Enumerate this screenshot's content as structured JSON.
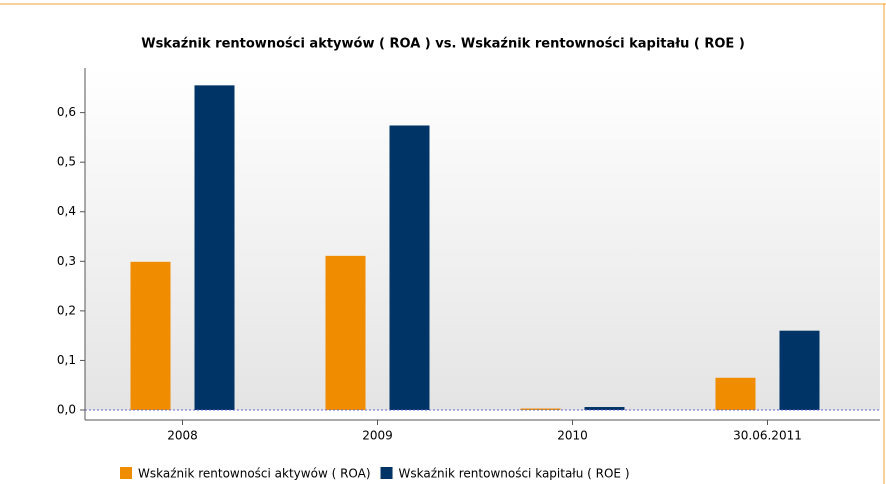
{
  "chart_data": {
    "type": "bar",
    "title": "Wskaźnik rentowności aktywów ( ROA ) vs. Wskaźnik rentowności kapitału ( ROE )",
    "categories": [
      "2008",
      "2009",
      "2010",
      "30.06.2011"
    ],
    "series": [
      {
        "name": "Wskaźnik rentowności aktywów ( ROA)",
        "color": "#f08c00",
        "values": [
          0.299,
          0.311,
          0.003,
          0.065
        ]
      },
      {
        "name": "Wskaźnik rentowności kapitału ( ROE )",
        "color": "#003366",
        "values": [
          0.655,
          0.574,
          0.006,
          0.16
        ]
      }
    ],
    "ylim": [
      0,
      0.69
    ],
    "yticks": [
      {
        "value": 0,
        "label": "0,0"
      },
      {
        "value": 0.1,
        "label": "0,1"
      },
      {
        "value": 0.2,
        "label": "0,2"
      },
      {
        "value": 0.3,
        "label": "0,3"
      },
      {
        "value": 0.4,
        "label": "0,4"
      },
      {
        "value": 0.5,
        "label": "0,5"
      },
      {
        "value": 0.6,
        "label": "0,6"
      }
    ],
    "legend": "bottom"
  }
}
